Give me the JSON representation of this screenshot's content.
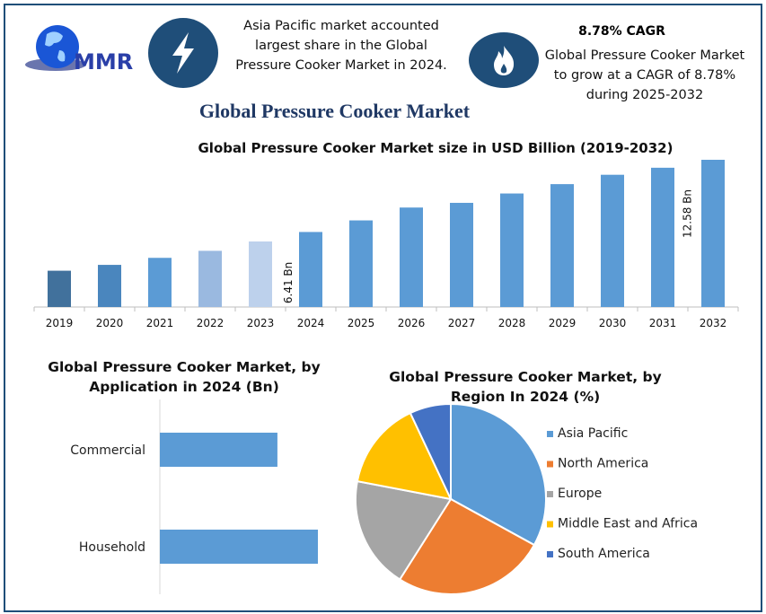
{
  "logo": {
    "text": "MMR"
  },
  "info1": {
    "icon": "lightning-icon",
    "text": "Asia Pacific market accounted largest share in the Global Pressure Cooker Market in 2024.",
    "lines": [
      "Asia Pacific market accounted",
      "largest share in the Global",
      "Pressure Cooker Market in 2024."
    ]
  },
  "info2": {
    "icon": "flame-icon",
    "heading": "8.78% CAGR",
    "lines": [
      "Global Pressure Cooker Market",
      "to grow at a CAGR of 8.78%",
      "during 2025-2032"
    ]
  },
  "title": "Global Pressure Cooker Market",
  "colors": {
    "frame": "#1f4e79",
    "bar": "#5b9bd5",
    "asia_pacific": "#5b9bd5",
    "north_america": "#ed7d31",
    "europe": "#a5a5a5",
    "mea": "#ffc000",
    "south_america": "#4472c4"
  },
  "chart_data": [
    {
      "type": "bar",
      "title": "Global Pressure Cooker Market size in USD Billion (2019-2032)",
      "categories": [
        "2019",
        "2020",
        "2021",
        "2022",
        "2023",
        "2024",
        "2025",
        "2026",
        "2027",
        "2028",
        "2029",
        "2030",
        "2031",
        "2032"
      ],
      "values": [
        3.1,
        3.6,
        4.2,
        4.8,
        5.6,
        6.41,
        7.4,
        8.5,
        8.9,
        9.7,
        10.5,
        11.3,
        11.9,
        12.58
      ],
      "bar_colors": [
        "#41719c",
        "#4a86be",
        "#5b9bd5",
        "#9ab9e0",
        "#bdd1ec",
        "#5b9bd5",
        "#5b9bd5",
        "#5b9bd5",
        "#5b9bd5",
        "#5b9bd5",
        "#5b9bd5",
        "#5b9bd5",
        "#5b9bd5",
        "#5b9bd5"
      ],
      "data_labels": {
        "2024": "6.41 Bn",
        "2032": "12.58 Bn"
      },
      "ylim": [
        0,
        13
      ],
      "grid": false
    },
    {
      "type": "bar",
      "orientation": "horizontal",
      "title_lines": [
        "Global Pressure Cooker Market, by",
        "Application in 2024 (Bn)"
      ],
      "categories": [
        "Commercial",
        "Household"
      ],
      "values": [
        2.73,
        3.67
      ],
      "xlim": [
        0,
        4.2
      ],
      "grid": false
    },
    {
      "type": "pie",
      "title_lines": [
        "Global Pressure Cooker Market, by",
        "Region In 2024 (%)"
      ],
      "categories": [
        "Asia Pacific",
        "North America",
        "Europe",
        "Middle East and Africa",
        "South America"
      ],
      "values": [
        33,
        26,
        19,
        15,
        7
      ],
      "legend": "right"
    }
  ]
}
